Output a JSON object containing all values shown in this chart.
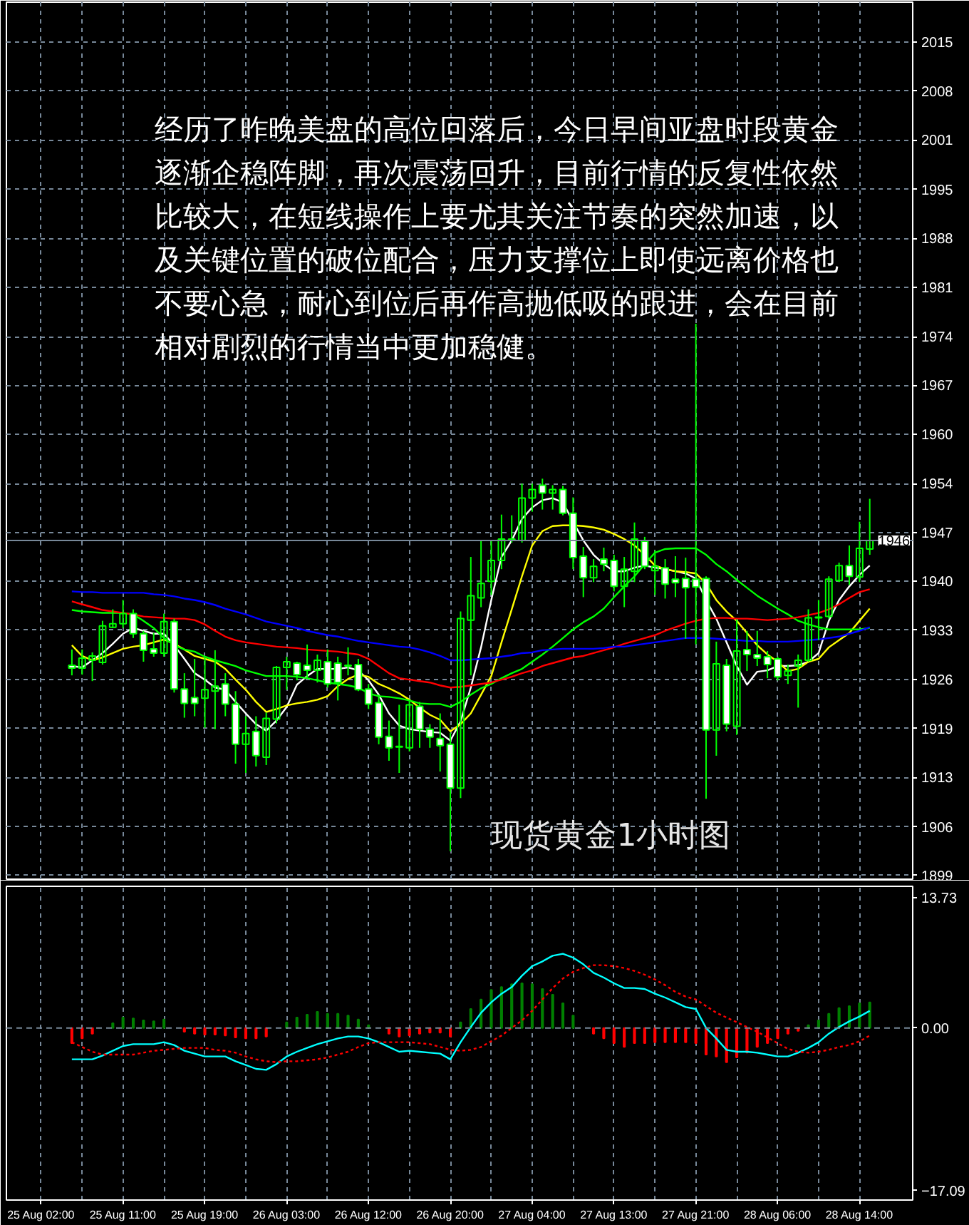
{
  "chart_data": [
    {
      "type": "candlestick",
      "annotations": [
        "经历了昨晚美盘的高位回落后，今日早间亚盘时段黄金逐渐企稳阵脚，再次震荡回升，目前行情的反复性依然比较大，在短线操作上要尤其关注节奏的突然加速，以及关键位置的破位配合，压力支撑位上即使远离价格也不要心急，耐心到位后再作高抛低吸的跟进，会在目前相对剧烈的行情当中更加稳健。",
        "现货黄金1小时图"
      ],
      "categories": [
        null,
        null,
        null,
        null,
        null,
        null,
        null,
        null,
        null,
        null,
        null,
        null,
        null,
        null,
        null,
        null,
        null,
        null,
        null,
        null,
        null,
        null,
        null,
        null,
        null,
        null,
        null,
        null,
        null,
        null,
        null,
        null,
        null,
        null,
        null,
        null,
        null,
        null,
        null,
        null,
        null,
        null,
        null,
        null,
        null,
        null,
        null,
        null,
        null,
        null,
        null,
        null,
        null,
        null,
        null,
        null,
        null,
        null,
        null,
        null,
        null,
        null,
        null,
        null,
        null,
        null,
        null,
        null,
        null,
        null,
        null,
        null,
        null,
        null,
        null,
        null,
        null,
        null,
        null,
        null,
        null,
        null
      ],
      "series": [
        {
          "color": "#00ff00",
          "colors": [
            null,
            null,
            null,
            "#ffffff",
            null,
            null,
            null,
            null,
            null,
            "#ffffff",
            "#ffffff",
            "#ffffff",
            null,
            "#ffffff",
            "#ffffff",
            "#ffffff",
            null,
            null,
            "#ffffff",
            "#ffffff",
            null,
            "#ffffff",
            null,
            null,
            null,
            "#ffffff",
            "#ffffff",
            null,
            "#ffffff",
            "#ffffff",
            "#ffffff",
            "#ffffff",
            "#ffffff",
            "#ffffff",
            "#ffffff",
            "#ffffff",
            null,
            "#ffffff",
            "#ffffff",
            "#ffffff",
            "#ffffff",
            null,
            null,
            null,
            null,
            null,
            "#ffffff",
            null,
            null,
            "#ffffff",
            null,
            "#ffffff",
            "#ffffff",
            "#ffffff",
            null,
            "#ffffff",
            "#ffffff",
            null,
            null,
            "#ffffff",
            null,
            "#ffffff",
            "#ffffff",
            "#ffffff",
            "#ffffff",
            "#ffffff",
            null,
            "#ffffff",
            null,
            "#ffffff",
            "#ffffff",
            "#ffffff",
            "#ffffff",
            null,
            null,
            null,
            null,
            null,
            null,
            "#ffffff",
            null,
            null
          ],
          "ohlc": [
            null,
            null,
            null,
            [
              1928.2,
              1930.4,
              1926.8,
              1927.8
            ],
            [
              1927.8,
              1930.4,
              1926.9,
              1929.2
            ],
            [
              1928.9,
              1930.0,
              1926.0,
              1929.5
            ],
            [
              1928.6,
              1934.4,
              1928.3,
              1933.7
            ],
            [
              1933.5,
              1936.0,
              1933.4,
              1934.0
            ],
            [
              1934.0,
              1937.3,
              1933.4,
              1935.4
            ],
            [
              1935.4,
              1936.0,
              1932.0,
              1932.6
            ],
            [
              1932.6,
              1933.0,
              1928.7,
              1930.3
            ],
            [
              1930.5,
              1932.7,
              1929.4,
              1929.9
            ],
            [
              1929.9,
              1935.4,
              1929.4,
              1934.3
            ],
            [
              1934.3,
              1934.7,
              1924.4,
              1924.9
            ],
            [
              1924.9,
              1927.1,
              1920.9,
              1922.9
            ],
            [
              1923.7,
              1929.1,
              1921.1,
              1922.9
            ],
            [
              1923.6,
              1929.4,
              1919.5,
              1924.8
            ],
            [
              1924.6,
              1930.3,
              1919.3,
              1925.3
            ],
            [
              1925.6,
              1927.1,
              1921.1,
              1922.8
            ],
            [
              1922.8,
              1924.6,
              1914.5,
              1917.2
            ],
            [
              1917.2,
              1921.1,
              1913.2,
              1918.7
            ],
            [
              1919.0,
              1921.1,
              1914.1,
              1915.6
            ],
            [
              1915.4,
              1921.6,
              1914.3,
              1920.8
            ],
            [
              1920.7,
              1928.1,
              1920.1,
              1927.9
            ],
            [
              1927.9,
              1929.4,
              1924.8,
              1928.7
            ],
            [
              1928.5,
              1928.7,
              1926.1,
              1926.9
            ],
            [
              1928.2,
              1931.1,
              1926.4,
              1927.5
            ],
            [
              1927.5,
              1929.7,
              1925.8,
              1928.9
            ],
            [
              1928.7,
              1930.4,
              1925.1,
              1925.6
            ],
            [
              1928.5,
              1929.4,
              1923.3,
              1925.8
            ],
            [
              1928.2,
              1930.7,
              1926.8,
              1928.1
            ],
            [
              1928.3,
              1929.1,
              1924.6,
              1924.8
            ],
            [
              1924.9,
              1925.6,
              1922.1,
              1922.8
            ],
            [
              1923.0,
              1924.1,
              1917.2,
              1918.2
            ],
            [
              1918.3,
              1920.5,
              1914.9,
              1916.7
            ],
            [
              1916.9,
              1922.7,
              1913.2,
              1916.8
            ],
            [
              1916.7,
              1923.3,
              1916.2,
              1922.7
            ],
            [
              1922.5,
              1923.1,
              1916.7,
              1919.3
            ],
            [
              1919.3,
              1920.0,
              1916.7,
              1918.2
            ],
            [
              1918.0,
              1921.5,
              1913.4,
              1917.0
            ],
            [
              1917.2,
              1918.8,
              1902.3,
              1911.1
            ],
            [
              1911.1,
              1935.7,
              1909.7,
              1934.7
            ],
            [
              1934.5,
              1943.3,
              1926.8,
              1937.9
            ],
            [
              1937.6,
              1945.6,
              1936.3,
              1939.6
            ],
            [
              1939.9,
              1945.6,
              1938.0,
              1942.8
            ],
            [
              1942.8,
              1949.2,
              1941.6,
              1945.8
            ],
            [
              1945.8,
              1949.1,
              1945.3,
              1945.7
            ],
            [
              1945.6,
              1953.5,
              1945.3,
              1951.5
            ],
            [
              1951.5,
              1953.5,
              1949.6,
              1952.7
            ],
            [
              1953.3,
              1954.2,
              1949.9,
              1952.2
            ],
            [
              1952.2,
              1953.3,
              1949.9,
              1952.7
            ],
            [
              1952.7,
              1953.2,
              1949.1,
              1949.4
            ],
            [
              1949.4,
              1951.6,
              1941.6,
              1943.2
            ],
            [
              1943.4,
              1944.7,
              1937.7,
              1940.4
            ],
            [
              1940.4,
              1943.0,
              1939.8,
              1942.0
            ],
            [
              1943.0,
              1944.6,
              1941.3,
              1942.3
            ],
            [
              1942.8,
              1943.6,
              1938.5,
              1939.2
            ],
            [
              1939.2,
              1943.3,
              1936.3,
              1941.6
            ],
            [
              1941.3,
              1948.1,
              1939.8,
              1945.8
            ],
            [
              1945.5,
              1946.1,
              1941.6,
              1942.0
            ],
            [
              1941.4,
              1944.2,
              1938.0,
              1942.0
            ],
            [
              1941.8,
              1943.0,
              1937.5,
              1939.5
            ],
            [
              1940.2,
              1943.4,
              1937.7,
              1939.7
            ],
            [
              1940.3,
              1943.2,
              1931.9,
              1939.0
            ],
            [
              1940.2,
              1975.8,
              1931.1,
              1939.1
            ],
            [
              1940.3,
              1940.6,
              1909.6,
              1919.2
            ],
            [
              1919.2,
              1931.5,
              1915.6,
              1928.4
            ],
            [
              1928.2,
              1929.1,
              1919.0,
              1920.0
            ],
            [
              1919.7,
              1934.6,
              1918.5,
              1930.2
            ],
            [
              1930.4,
              1933.0,
              1927.4,
              1929.7
            ],
            [
              1929.7,
              1933.0,
              1928.1,
              1929.2
            ],
            [
              1929.4,
              1930.2,
              1926.4,
              1928.3
            ],
            [
              1929.1,
              1929.4,
              1926.1,
              1926.6
            ],
            [
              1926.8,
              1928.3,
              1925.6,
              1927.4
            ],
            [
              1928.1,
              1929.7,
              1922.3,
              1928.9
            ],
            [
              1928.9,
              1936.0,
              1928.7,
              1934.8
            ],
            [
              1934.8,
              1937.3,
              1931.7,
              1934.9
            ],
            [
              1935.0,
              1940.6,
              1934.7,
              1940.2
            ],
            [
              1940.0,
              1942.5,
              1939.8,
              1942.1
            ],
            [
              1942.1,
              1944.9,
              1939.4,
              1940.6
            ],
            [
              1940.5,
              1948.2,
              1939.8,
              1944.5
            ],
            [
              1944.4,
              1951.4,
              1943.6,
              1945.6
            ]
          ]
        },
        {
          "type": "line",
          "color": "#ffffff",
          "values": [
            null,
            null,
            null,
            1928.1,
            1927.9,
            1928.9,
            1929.9,
            1931.2,
            1932.6,
            1933.4,
            1933.0,
            1932.6,
            1932.6,
            1931.0,
            1929.1,
            1927.1,
            1926.2,
            1925.1,
            1924.8,
            1923.1,
            1921.5,
            1920.0,
            1919.1,
            1920.5,
            1922.4,
            1925.5,
            1926.7,
            1927.7,
            1927.7,
            1927.7,
            1927.9,
            1927.5,
            1926.1,
            1924.1,
            1921.5,
            1919.8,
            1919.3,
            1919.1,
            1918.9,
            1918.8,
            1917.7,
            1920.4,
            1925.1,
            1930.7,
            1937.3,
            1943.3,
            1945.6,
            1948.6,
            1950.2,
            1951.2,
            1951.5,
            1950.9,
            1948.2,
            1945.6,
            1943.6,
            1942.3,
            1941.3,
            1941.3,
            1941.8,
            1942.1,
            1941.8,
            1941.6,
            1941.3,
            1941.0,
            1940.3,
            1937.3,
            1934.7,
            1931.4,
            1928.1,
            1925.5,
            1927.3,
            1927.5,
            1928.1,
            1928.1,
            1928.2,
            1928.7,
            1929.9,
            1934.4,
            1937.3,
            1939.2,
            1940.8,
            1942.1
          ]
        },
        {
          "type": "line",
          "color": "#ffff00",
          "values": [
            null,
            null,
            null,
            1931.0,
            1929.5,
            1928.9,
            1929.3,
            1929.9,
            1930.5,
            1930.8,
            1931.0,
            1931.4,
            1931.8,
            1931.2,
            1930.4,
            1929.5,
            1929.1,
            1928.7,
            1927.7,
            1926.2,
            1924.8,
            1923.1,
            1921.7,
            1922.1,
            1922.6,
            1922.9,
            1923.1,
            1923.4,
            1923.9,
            1925.3,
            1926.3,
            1926.9,
            1926.6,
            1925.6,
            1925.0,
            1924.3,
            1923.4,
            1922.3,
            1921.3,
            1920.6,
            1919.0,
            1920.0,
            1921.5,
            1924.1,
            1926.7,
            1931.4,
            1936.0,
            1940.6,
            1944.9,
            1946.9,
            1947.6,
            1947.7,
            1947.7,
            1947.6,
            1947.4,
            1947.1,
            1946.5,
            1945.8,
            1944.9,
            1943.6,
            1942.1,
            1941.6,
            1941.3,
            1941.2,
            1941.0,
            1939.6,
            1937.3,
            1935.7,
            1934.4,
            1932.7,
            1931.0,
            1929.7,
            1928.7,
            1927.4,
            1927.7,
            1928.7,
            1929.1,
            1930.7,
            1931.7,
            1932.7,
            1934.4,
            1936.1
          ]
        },
        {
          "type": "line",
          "color": "#00ff00",
          "values": [
            null,
            null,
            null,
            1935.9,
            1935.7,
            1935.6,
            1935.5,
            1935.5,
            1935.5,
            1935.3,
            1934.4,
            1933.4,
            1932.0,
            1931.0,
            1930.4,
            1930.1,
            1929.4,
            1928.9,
            1928.5,
            1928.1,
            1927.5,
            1927.1,
            1926.7,
            1926.7,
            1926.7,
            1926.6,
            1926.4,
            1926.1,
            1925.8,
            1925.6,
            1925.4,
            1925.1,
            1924.3,
            1923.9,
            1923.8,
            1923.6,
            1923.3,
            1922.9,
            1922.8,
            1922.8,
            1922.4,
            1923.1,
            1924.1,
            1925.0,
            1925.6,
            1926.4,
            1927.1,
            1927.7,
            1928.7,
            1929.7,
            1930.8,
            1932.0,
            1933.2,
            1934.2,
            1935.0,
            1936.1,
            1937.7,
            1939.2,
            1940.6,
            1942.3,
            1943.9,
            1944.4,
            1944.5,
            1944.5,
            1944.5,
            1943.6,
            1942.3,
            1941.3,
            1940.1,
            1939.0,
            1937.9,
            1937.0,
            1936.1,
            1935.3,
            1934.4,
            1933.9,
            1933.5,
            1933.2,
            1933.2,
            1933.2,
            1933.2,
            1933.4
          ]
        },
        {
          "type": "line",
          "color": "#ff0000",
          "values": [
            null,
            null,
            null,
            1937.1,
            1936.7,
            1936.3,
            1935.9,
            1935.7,
            1935.5,
            1935.3,
            1935.0,
            1934.9,
            1934.8,
            1934.7,
            1934.7,
            1934.5,
            1933.9,
            1933.0,
            1932.2,
            1931.7,
            1931.4,
            1931.2,
            1931.0,
            1930.8,
            1930.7,
            1930.6,
            1930.4,
            1930.3,
            1930.2,
            1930.1,
            1929.9,
            1929.7,
            1929.1,
            1928.1,
            1927.1,
            1926.4,
            1926.2,
            1926.0,
            1925.8,
            1925.4,
            1925.1,
            1925.2,
            1925.4,
            1925.6,
            1925.8,
            1926.2,
            1926.6,
            1927.1,
            1927.5,
            1928.1,
            1928.5,
            1928.9,
            1929.3,
            1929.5,
            1929.9,
            1930.3,
            1930.7,
            1931.2,
            1931.6,
            1932.0,
            1932.4,
            1933.0,
            1933.5,
            1934.0,
            1934.4,
            1934.7,
            1934.8,
            1934.8,
            1934.7,
            1934.7,
            1934.6,
            1934.5,
            1934.6,
            1934.7,
            1934.9,
            1935.2,
            1935.5,
            1936.0,
            1936.7,
            1937.6,
            1938.4,
            1938.8
          ]
        },
        {
          "type": "line",
          "color": "#0000ff",
          "values": [
            null,
            null,
            null,
            1938.5,
            1938.4,
            1938.4,
            1938.3,
            1938.3,
            1938.3,
            1938.3,
            1938.3,
            1938.1,
            1938.0,
            1937.8,
            1937.5,
            1937.3,
            1937.0,
            1936.6,
            1936.1,
            1935.7,
            1935.3,
            1934.8,
            1934.3,
            1934.0,
            1933.7,
            1933.4,
            1933.0,
            1932.7,
            1932.4,
            1932.2,
            1931.9,
            1931.6,
            1931.4,
            1931.2,
            1931.0,
            1930.8,
            1930.7,
            1930.4,
            1930.0,
            1929.5,
            1928.9,
            1928.9,
            1929.0,
            1929.1,
            1929.2,
            1929.4,
            1929.6,
            1929.9,
            1930.0,
            1930.3,
            1930.4,
            1930.5,
            1930.5,
            1930.5,
            1930.5,
            1930.6,
            1930.8,
            1930.8,
            1931.0,
            1931.2,
            1931.4,
            1931.6,
            1931.8,
            1932.0,
            1932.0,
            1932.0,
            1931.9,
            1931.8,
            1931.7,
            1931.6,
            1931.6,
            1931.5,
            1931.5,
            1931.5,
            1931.6,
            1931.7,
            1931.8,
            1932.0,
            1932.2,
            1932.6,
            1933.0,
            1933.5
          ]
        }
      ],
      "ylim": [
        1898.4,
        2020.6
      ],
      "yticks": [
        {
          "value": 1898.9,
          "label": "1899"
        },
        {
          "value": 1905.7,
          "label": "1906"
        },
        {
          "value": 1912.6,
          "label": "1913"
        },
        {
          "value": 1919.4,
          "label": "1919"
        },
        {
          "value": 1926.2,
          "label": "1926"
        },
        {
          "value": 1933.1,
          "label": "1933"
        },
        {
          "value": 1939.9,
          "label": "1940"
        },
        {
          "value": 1946.7,
          "label": "1947"
        },
        {
          "value": 1953.5,
          "label": "1954"
        },
        {
          "value": 1960.4,
          "label": "1960"
        },
        {
          "value": 1967.2,
          "label": "1967"
        },
        {
          "value": 1974.0,
          "label": "1974"
        },
        {
          "value": 1980.9,
          "label": "1981"
        },
        {
          "value": 1987.7,
          "label": "1988"
        },
        {
          "value": 1994.5,
          "label": "1995"
        },
        {
          "value": 2001.4,
          "label": "2001"
        },
        {
          "value": 2008.2,
          "label": "2008"
        },
        {
          "value": 2015.0,
          "label": "2015"
        }
      ],
      "ref_lines": [
        {
          "axis": "y",
          "value": 1945.6,
          "label": "1946",
          "color": "#778899"
        }
      ],
      "grid": true,
      "tick_labels": "y"
    },
    {
      "type": "bar",
      "categories": [
        "25 Aug 02:00",
        null,
        null,
        null,
        null,
        null,
        null,
        null,
        "25 Aug 11:00",
        null,
        null,
        null,
        null,
        null,
        null,
        null,
        "25 Aug 19:00",
        null,
        null,
        null,
        null,
        null,
        null,
        null,
        "26 Aug 03:00",
        null,
        null,
        null,
        null,
        null,
        null,
        null,
        "26 Aug 12:00",
        null,
        null,
        null,
        null,
        null,
        null,
        null,
        "26 Aug 20:00",
        null,
        null,
        null,
        null,
        null,
        null,
        null,
        "27 Aug 04:00",
        null,
        null,
        null,
        null,
        null,
        null,
        null,
        "27 Aug 13:00",
        null,
        null,
        null,
        null,
        null,
        null,
        null,
        "27 Aug 21:00",
        null,
        null,
        null,
        null,
        null,
        null,
        null,
        "28 Aug 06:00",
        null,
        null,
        null,
        null,
        null,
        null,
        null,
        "28 Aug 14:00",
        null
      ],
      "series": [
        {
          "values": [
            null,
            null,
            null,
            -1.6,
            -1.1,
            -0.6,
            null,
            0.5,
            1.1,
            1.0,
            0.8,
            0.7,
            0.9,
            null,
            -0.4,
            -0.6,
            -0.7,
            -0.7,
            -0.8,
            -1.0,
            -1.1,
            -1.1,
            -0.9,
            null,
            0.6,
            1.1,
            1.4,
            1.7,
            1.5,
            1.5,
            1.3,
            0.9,
            0.3,
            null,
            -0.6,
            -0.9,
            -0.8,
            -0.6,
            -0.5,
            -0.5,
            -0.9,
            0.6,
            2.0,
            3.0,
            4.0,
            4.3,
            4.6,
            4.7,
            4.6,
            4.1,
            3.5,
            2.6,
            1.3,
            null,
            -0.6,
            -1.1,
            -1.6,
            -2.0,
            -1.6,
            -1.6,
            -1.5,
            -1.5,
            -1.5,
            -1.5,
            -1.6,
            -2.8,
            -3.0,
            -3.6,
            -3.1,
            -2.6,
            -2.0,
            -1.6,
            -1.1,
            -0.6,
            -0.3,
            0.3,
            0.8,
            1.5,
            2.1,
            2.3,
            2.6,
            2.7
          ],
          "colors": [
            null,
            null,
            null,
            "#ff0000",
            "#ff0000",
            "#ff0000",
            null,
            "#008000",
            "#008000",
            "#008000",
            "#008000",
            "#008000",
            "#008000",
            null,
            "#ff0000",
            "#ff0000",
            "#ff0000",
            "#ff0000",
            "#ff0000",
            "#ff0000",
            "#ff0000",
            "#ff0000",
            "#ff0000",
            null,
            "#008000",
            "#008000",
            "#008000",
            "#008000",
            "#008000",
            "#008000",
            "#008000",
            "#008000",
            "#008000",
            null,
            "#ff0000",
            "#ff0000",
            "#ff0000",
            "#ff0000",
            "#ff0000",
            "#ff0000",
            "#ff0000",
            "#008000",
            "#008000",
            "#008000",
            "#008000",
            "#008000",
            "#008000",
            "#008000",
            "#008000",
            "#008000",
            "#008000",
            "#008000",
            "#008000",
            null,
            "#ff0000",
            "#ff0000",
            "#ff0000",
            "#ff0000",
            "#ff0000",
            "#ff0000",
            "#ff0000",
            "#ff0000",
            "#ff0000",
            "#ff0000",
            "#ff0000",
            "#ff0000",
            "#ff0000",
            "#ff0000",
            "#ff0000",
            "#ff0000",
            "#ff0000",
            "#ff0000",
            "#ff0000",
            "#ff0000",
            "#ff0000",
            "#008000",
            "#008000",
            "#008000",
            "#008000",
            "#008000",
            "#008000",
            "#008000"
          ]
        },
        {
          "type": "line",
          "color": "#00ffff",
          "values": [
            null,
            null,
            null,
            -3.3,
            -3.3,
            -3.3,
            -2.9,
            -2.4,
            -1.9,
            -1.7,
            -1.7,
            -1.7,
            -1.5,
            -1.8,
            -2.4,
            -2.7,
            -3.0,
            -3.0,
            -3.0,
            -3.5,
            -3.9,
            -4.3,
            -4.4,
            -3.8,
            -3.0,
            -2.5,
            -2.1,
            -1.7,
            -1.4,
            -1.1,
            -0.9,
            -0.9,
            -1.1,
            -1.5,
            -2.0,
            -2.5,
            -2.4,
            -2.5,
            -2.6,
            -2.7,
            -3.3,
            -1.5,
            0.1,
            1.6,
            2.7,
            3.6,
            4.3,
            5.5,
            6.5,
            7.0,
            7.6,
            7.8,
            7.4,
            6.7,
            5.8,
            5.3,
            4.7,
            4.2,
            4.2,
            4.1,
            3.6,
            3.2,
            2.7,
            2.2,
            2.0,
            0.0,
            -1.1,
            -2.3,
            -2.5,
            -2.5,
            -2.6,
            -2.8,
            -3.0,
            -3.0,
            -2.6,
            -2.1,
            -1.5,
            -0.6,
            0.1,
            0.7,
            1.2,
            1.8
          ]
        },
        {
          "type": "line",
          "color": "#ff0000",
          "line_style": "dotted",
          "values": [
            null,
            null,
            null,
            -1.5,
            -2.0,
            -2.5,
            -2.8,
            -2.8,
            -2.8,
            -2.8,
            -2.6,
            -2.4,
            -2.3,
            -2.2,
            -2.1,
            -2.1,
            -2.1,
            -2.3,
            -2.4,
            -2.6,
            -3.0,
            -3.3,
            -3.5,
            -3.6,
            -3.5,
            -3.5,
            -3.4,
            -3.3,
            -3.1,
            -2.8,
            -2.5,
            -2.0,
            -1.6,
            -1.5,
            -1.5,
            -1.5,
            -1.5,
            -1.6,
            -1.7,
            -2.0,
            -2.3,
            -2.4,
            -2.3,
            -2.0,
            -1.4,
            -0.8,
            0.0,
            0.8,
            1.8,
            3.0,
            4.2,
            5.2,
            5.9,
            6.3,
            6.6,
            6.6,
            6.5,
            6.3,
            6.0,
            5.6,
            5.1,
            4.5,
            3.8,
            3.3,
            3.0,
            2.3,
            1.6,
            1.1,
            0.6,
            0.1,
            -0.4,
            -1.0,
            -1.6,
            -2.2,
            -2.5,
            -2.6,
            -2.5,
            -2.3,
            -2.0,
            -1.8,
            -1.4,
            -0.8
          ]
        }
      ],
      "ylim": [
        -18.1,
        14.9
      ],
      "yticks": [
        13.73,
        {
          "value": 0,
          "label": "0.00"
        },
        -17.09
      ],
      "ref_lines": [
        {
          "axis": "y",
          "value": 0,
          "color": "#778899",
          "line_style": "dashed"
        }
      ],
      "grid": "x"
    }
  ]
}
